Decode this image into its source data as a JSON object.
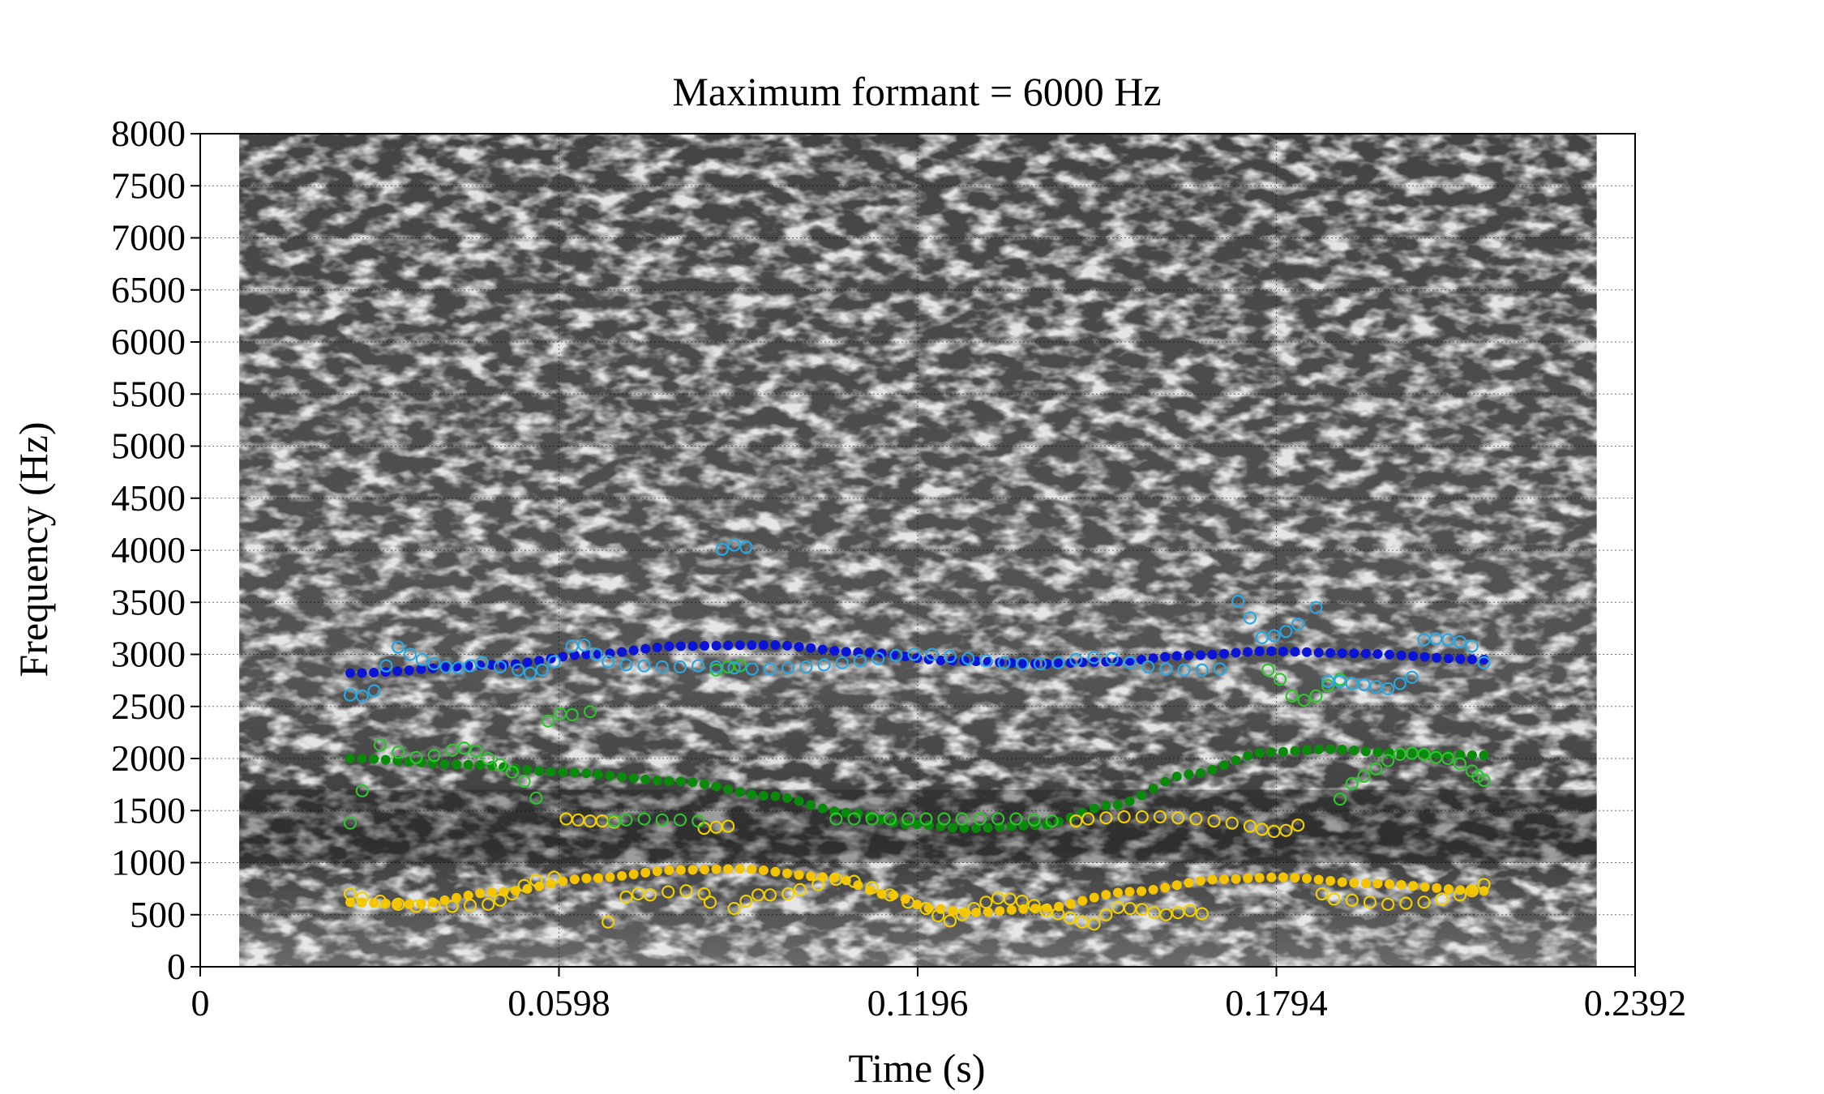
{
  "chart_data": {
    "type": "scatter",
    "title": "Maximum formant = 6000 Hz",
    "xlabel": "Time (s)",
    "ylabel": "Frequency (Hz)",
    "xlim": [
      0,
      0.2392
    ],
    "ylim": [
      0,
      8000
    ],
    "x_ticks": [
      "0",
      "0.0598",
      "0.1196",
      "0.1794",
      "0.2392"
    ],
    "x_tick_values": [
      0,
      0.0598,
      0.1196,
      0.1794,
      0.2392
    ],
    "y_ticks": [
      "0",
      "500",
      "1000",
      "1500",
      "2000",
      "2500",
      "3000",
      "3500",
      "4000",
      "4500",
      "5000",
      "5500",
      "6000",
      "6500",
      "7000",
      "7500",
      "8000"
    ],
    "y_tick_values": [
      0,
      500,
      1000,
      1500,
      2000,
      2500,
      3000,
      3500,
      4000,
      4500,
      5000,
      5500,
      6000,
      6500,
      7000,
      7500,
      8000
    ],
    "grid": true,
    "background": "spectrogram",
    "spectrogram_time_range": [
      0.0065,
      0.2328
    ],
    "frame_time_range": [
      0.025,
      0.214
    ],
    "series": [
      {
        "color": "#f5c400",
        "marker": "filled",
        "keypoints": [
          [
            0.025,
            620
          ],
          [
            0.035,
            600
          ],
          [
            0.05,
            720
          ],
          [
            0.065,
            850
          ],
          [
            0.08,
            930
          ],
          [
            0.09,
            940
          ],
          [
            0.105,
            860
          ],
          [
            0.115,
            690
          ],
          [
            0.122,
            560
          ],
          [
            0.128,
            520
          ],
          [
            0.14,
            560
          ],
          [
            0.155,
            720
          ],
          [
            0.17,
            840
          ],
          [
            0.18,
            860
          ],
          [
            0.195,
            800
          ],
          [
            0.214,
            730
          ]
        ]
      },
      {
        "color": "#0a8a0a",
        "marker": "filled",
        "keypoints": [
          [
            0.025,
            2000
          ],
          [
            0.045,
            1940
          ],
          [
            0.06,
            1870
          ],
          [
            0.08,
            1780
          ],
          [
            0.095,
            1640
          ],
          [
            0.108,
            1480
          ],
          [
            0.118,
            1370
          ],
          [
            0.128,
            1330
          ],
          [
            0.14,
            1360
          ],
          [
            0.152,
            1550
          ],
          [
            0.165,
            1850
          ],
          [
            0.178,
            2060
          ],
          [
            0.188,
            2090
          ],
          [
            0.2,
            2050
          ],
          [
            0.214,
            2030
          ]
        ]
      },
      {
        "color": "#0a14d6",
        "marker": "filled",
        "keypoints": [
          [
            0.025,
            2820
          ],
          [
            0.05,
            2900
          ],
          [
            0.065,
            3000
          ],
          [
            0.08,
            3080
          ],
          [
            0.095,
            3090
          ],
          [
            0.11,
            3020
          ],
          [
            0.125,
            2940
          ],
          [
            0.14,
            2910
          ],
          [
            0.152,
            2930
          ],
          [
            0.165,
            2990
          ],
          [
            0.178,
            3030
          ],
          [
            0.192,
            3010
          ],
          [
            0.214,
            2950
          ]
        ]
      },
      {
        "color": "#f0d000",
        "marker": "open",
        "points": [
          [
            0.025,
            700
          ],
          [
            0.027,
            660
          ],
          [
            0.03,
            630
          ],
          [
            0.033,
            600
          ],
          [
            0.036,
            580
          ],
          [
            0.039,
            590
          ],
          [
            0.042,
            580
          ],
          [
            0.045,
            590
          ],
          [
            0.048,
            600
          ],
          [
            0.05,
            640
          ],
          [
            0.052,
            700
          ],
          [
            0.054,
            780
          ],
          [
            0.056,
            830
          ],
          [
            0.059,
            860
          ],
          [
            0.068,
            430
          ],
          [
            0.071,
            670
          ],
          [
            0.073,
            700
          ],
          [
            0.075,
            690
          ],
          [
            0.078,
            720
          ],
          [
            0.081,
            730
          ],
          [
            0.084,
            700
          ],
          [
            0.085,
            620
          ],
          [
            0.089,
            560
          ],
          [
            0.091,
            630
          ],
          [
            0.093,
            690
          ],
          [
            0.095,
            690
          ],
          [
            0.098,
            700
          ],
          [
            0.1,
            740
          ],
          [
            0.103,
            790
          ],
          [
            0.106,
            840
          ],
          [
            0.109,
            820
          ],
          [
            0.112,
            760
          ],
          [
            0.115,
            690
          ],
          [
            0.118,
            620
          ],
          [
            0.121,
            560
          ],
          [
            0.123,
            490
          ],
          [
            0.125,
            440
          ],
          [
            0.127,
            500
          ],
          [
            0.129,
            560
          ],
          [
            0.131,
            620
          ],
          [
            0.133,
            660
          ],
          [
            0.135,
            650
          ],
          [
            0.137,
            630
          ],
          [
            0.139,
            590
          ],
          [
            0.141,
            540
          ],
          [
            0.143,
            510
          ],
          [
            0.145,
            470
          ],
          [
            0.147,
            430
          ],
          [
            0.149,
            410
          ],
          [
            0.151,
            500
          ],
          [
            0.153,
            570
          ],
          [
            0.155,
            560
          ],
          [
            0.157,
            550
          ],
          [
            0.159,
            520
          ],
          [
            0.161,
            500
          ],
          [
            0.163,
            520
          ],
          [
            0.165,
            540
          ],
          [
            0.167,
            510
          ],
          [
            0.061,
            1420
          ],
          [
            0.063,
            1410
          ],
          [
            0.065,
            1400
          ],
          [
            0.067,
            1400
          ],
          [
            0.069,
            1390
          ],
          [
            0.084,
            1330
          ],
          [
            0.086,
            1340
          ],
          [
            0.088,
            1350
          ],
          [
            0.146,
            1400
          ],
          [
            0.148,
            1420
          ],
          [
            0.151,
            1430
          ],
          [
            0.154,
            1440
          ],
          [
            0.157,
            1440
          ],
          [
            0.16,
            1440
          ],
          [
            0.163,
            1430
          ],
          [
            0.166,
            1420
          ],
          [
            0.169,
            1400
          ],
          [
            0.172,
            1380
          ],
          [
            0.175,
            1350
          ],
          [
            0.177,
            1320
          ],
          [
            0.179,
            1300
          ],
          [
            0.181,
            1310
          ],
          [
            0.183,
            1360
          ],
          [
            0.187,
            700
          ],
          [
            0.189,
            650
          ],
          [
            0.192,
            640
          ],
          [
            0.195,
            620
          ],
          [
            0.198,
            600
          ],
          [
            0.201,
            610
          ],
          [
            0.204,
            620
          ],
          [
            0.207,
            650
          ],
          [
            0.21,
            690
          ],
          [
            0.212,
            730
          ],
          [
            0.214,
            790
          ]
        ]
      },
      {
        "color": "#2ec42e",
        "marker": "open",
        "points": [
          [
            0.025,
            1380
          ],
          [
            0.027,
            1690
          ],
          [
            0.03,
            2130
          ],
          [
            0.033,
            2060
          ],
          [
            0.036,
            2010
          ],
          [
            0.039,
            2030
          ],
          [
            0.042,
            2080
          ],
          [
            0.044,
            2100
          ],
          [
            0.046,
            2070
          ],
          [
            0.048,
            2000
          ],
          [
            0.05,
            1940
          ],
          [
            0.052,
            1870
          ],
          [
            0.054,
            1780
          ],
          [
            0.056,
            1620
          ],
          [
            0.058,
            2360
          ],
          [
            0.06,
            2430
          ],
          [
            0.062,
            2420
          ],
          [
            0.065,
            2450
          ],
          [
            0.069,
            1400
          ],
          [
            0.071,
            1410
          ],
          [
            0.074,
            1420
          ],
          [
            0.077,
            1410
          ],
          [
            0.08,
            1410
          ],
          [
            0.083,
            1400
          ],
          [
            0.086,
            2850
          ],
          [
            0.088,
            2880
          ],
          [
            0.09,
            2890
          ],
          [
            0.106,
            1420
          ],
          [
            0.109,
            1420
          ],
          [
            0.112,
            1420
          ],
          [
            0.115,
            1420
          ],
          [
            0.118,
            1420
          ],
          [
            0.121,
            1420
          ],
          [
            0.124,
            1420
          ],
          [
            0.127,
            1420
          ],
          [
            0.13,
            1420
          ],
          [
            0.133,
            1420
          ],
          [
            0.136,
            1420
          ],
          [
            0.139,
            1410
          ],
          [
            0.142,
            1400
          ],
          [
            0.178,
            2850
          ],
          [
            0.18,
            2760
          ],
          [
            0.182,
            2600
          ],
          [
            0.184,
            2560
          ],
          [
            0.186,
            2600
          ],
          [
            0.188,
            2700
          ],
          [
            0.19,
            2760
          ],
          [
            0.19,
            1610
          ],
          [
            0.192,
            1760
          ],
          [
            0.194,
            1830
          ],
          [
            0.196,
            1900
          ],
          [
            0.198,
            1980
          ],
          [
            0.2,
            2040
          ],
          [
            0.202,
            2050
          ],
          [
            0.204,
            2040
          ],
          [
            0.206,
            2010
          ],
          [
            0.208,
            2000
          ],
          [
            0.21,
            1950
          ],
          [
            0.212,
            1880
          ],
          [
            0.213,
            1830
          ],
          [
            0.214,
            1790
          ]
        ]
      },
      {
        "color": "#2aa6e0",
        "marker": "open",
        "points": [
          [
            0.025,
            2610
          ],
          [
            0.027,
            2600
          ],
          [
            0.029,
            2650
          ],
          [
            0.031,
            2890
          ],
          [
            0.033,
            3070
          ],
          [
            0.035,
            3000
          ],
          [
            0.037,
            2950
          ],
          [
            0.039,
            2910
          ],
          [
            0.041,
            2880
          ],
          [
            0.043,
            2870
          ],
          [
            0.045,
            2890
          ],
          [
            0.047,
            2920
          ],
          [
            0.05,
            2880
          ],
          [
            0.053,
            2850
          ],
          [
            0.055,
            2820
          ],
          [
            0.057,
            2850
          ],
          [
            0.059,
            2930
          ],
          [
            0.062,
            3080
          ],
          [
            0.064,
            3090
          ],
          [
            0.066,
            3000
          ],
          [
            0.068,
            2930
          ],
          [
            0.071,
            2900
          ],
          [
            0.074,
            2890
          ],
          [
            0.077,
            2880
          ],
          [
            0.08,
            2880
          ],
          [
            0.083,
            2890
          ],
          [
            0.086,
            2880
          ],
          [
            0.089,
            2870
          ],
          [
            0.092,
            2860
          ],
          [
            0.095,
            2860
          ],
          [
            0.098,
            2870
          ],
          [
            0.101,
            2880
          ],
          [
            0.104,
            2900
          ],
          [
            0.107,
            2920
          ],
          [
            0.11,
            2940
          ],
          [
            0.113,
            2960
          ],
          [
            0.116,
            2990
          ],
          [
            0.119,
            3000
          ],
          [
            0.122,
            3000
          ],
          [
            0.125,
            2980
          ],
          [
            0.128,
            2960
          ],
          [
            0.131,
            2940
          ],
          [
            0.134,
            2920
          ],
          [
            0.137,
            2910
          ],
          [
            0.14,
            2910
          ],
          [
            0.143,
            2920
          ],
          [
            0.146,
            2950
          ],
          [
            0.149,
            2970
          ],
          [
            0.152,
            2960
          ],
          [
            0.155,
            2920
          ],
          [
            0.158,
            2880
          ],
          [
            0.161,
            2860
          ],
          [
            0.164,
            2850
          ],
          [
            0.167,
            2850
          ],
          [
            0.17,
            2860
          ],
          [
            0.087,
            4010
          ],
          [
            0.089,
            4050
          ],
          [
            0.091,
            4030
          ],
          [
            0.173,
            3510
          ],
          [
            0.175,
            3350
          ],
          [
            0.177,
            3160
          ],
          [
            0.179,
            3180
          ],
          [
            0.181,
            3220
          ],
          [
            0.183,
            3290
          ],
          [
            0.186,
            3450
          ],
          [
            0.188,
            2740
          ],
          [
            0.19,
            2740
          ],
          [
            0.192,
            2720
          ],
          [
            0.194,
            2710
          ],
          [
            0.196,
            2690
          ],
          [
            0.198,
            2670
          ],
          [
            0.2,
            2720
          ],
          [
            0.202,
            2780
          ],
          [
            0.204,
            3140
          ],
          [
            0.206,
            3150
          ],
          [
            0.208,
            3140
          ],
          [
            0.21,
            3120
          ],
          [
            0.212,
            3080
          ],
          [
            0.214,
            2920
          ]
        ]
      }
    ]
  }
}
